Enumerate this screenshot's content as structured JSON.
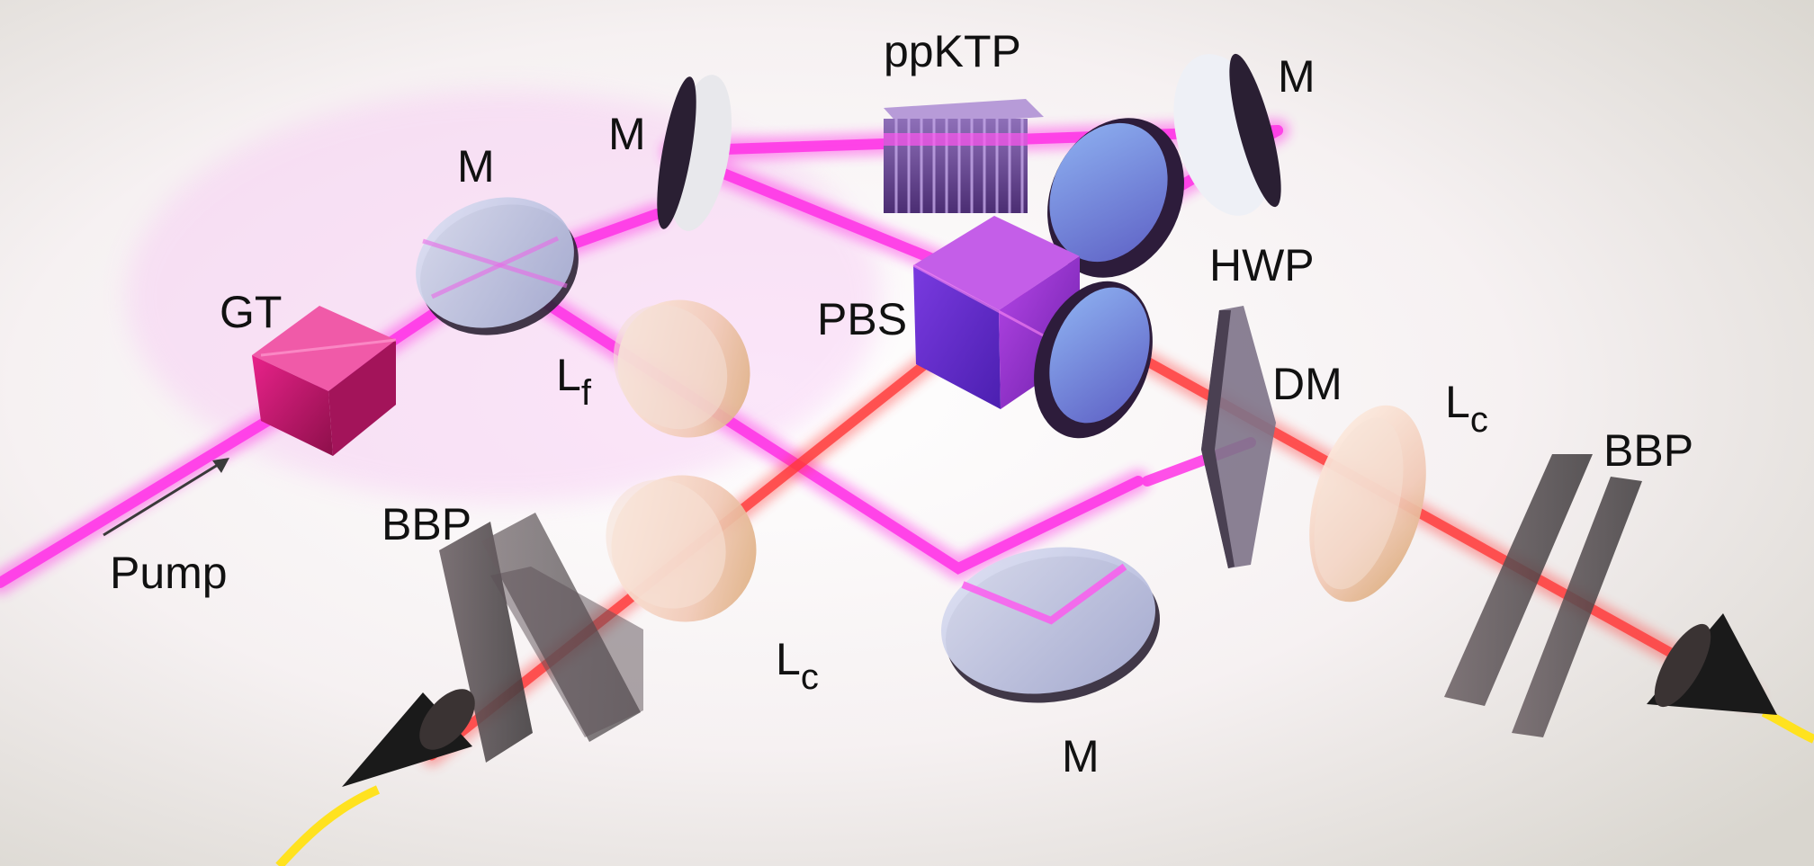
{
  "labels": {
    "pump": "Pump",
    "gt": "GT",
    "m_left": "M",
    "m_top": "M",
    "ppktp": "ppKTP",
    "m_right": "M",
    "hwp": "HWP",
    "pbs": "PBS",
    "lf_main": "L",
    "lf_sub": "f",
    "dm": "DM",
    "lc_right_main": "L",
    "lc_right_sub": "c",
    "bbp_right": "BBP",
    "bbp_left": "BBP",
    "lc_left_main": "L",
    "lc_left_sub": "c",
    "m_bottom": "M"
  },
  "colors": {
    "pump_beam": "#ff33e6",
    "photon_beam": "#ff3838",
    "mirror": "#c8cde8",
    "cube": "#8a2fd6",
    "gt_cube": "#d0186e",
    "fiber": "#ffe21f"
  }
}
